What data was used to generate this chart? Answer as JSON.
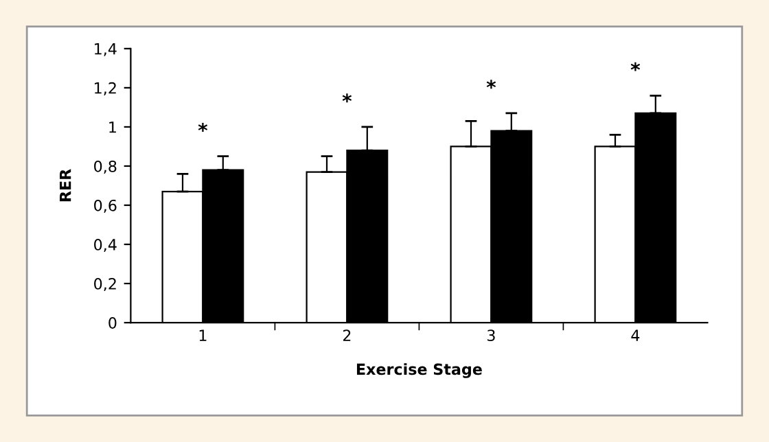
{
  "chart_data": {
    "type": "bar",
    "xlabel": "Exercise Stage",
    "ylabel": "RER",
    "categories": [
      "1",
      "2",
      "3",
      "4"
    ],
    "series": [
      {
        "color": "#ffffff",
        "values": [
          0.67,
          0.77,
          0.9,
          0.9
        ],
        "errors": [
          [
            0.67,
            0.76
          ],
          [
            0.77,
            0.85
          ],
          [
            0.9,
            1.03
          ],
          [
            0.9,
            0.96
          ]
        ]
      },
      {
        "color": "#000000",
        "values": [
          0.78,
          0.88,
          0.98,
          1.07
        ],
        "errors": [
          [
            0.78,
            0.85
          ],
          [
            0.88,
            1.0
          ],
          [
            0.98,
            1.07
          ],
          [
            1.07,
            1.16
          ]
        ]
      }
    ],
    "ylim": [
      0,
      1.4
    ],
    "yticks": [
      0,
      {
        "value": 0.2,
        "label": "0,2"
      },
      {
        "value": 0.4,
        "label": "0,4"
      },
      {
        "value": 0.6,
        "label": "0,6"
      },
      {
        "value": 0.8,
        "label": "0,8"
      },
      1,
      {
        "value": 1.2,
        "label": "1,2"
      },
      {
        "value": 1.4,
        "label": "1,4"
      }
    ],
    "annotations": [
      "*",
      "*",
      "*",
      "*"
    ],
    "grid": false
  }
}
